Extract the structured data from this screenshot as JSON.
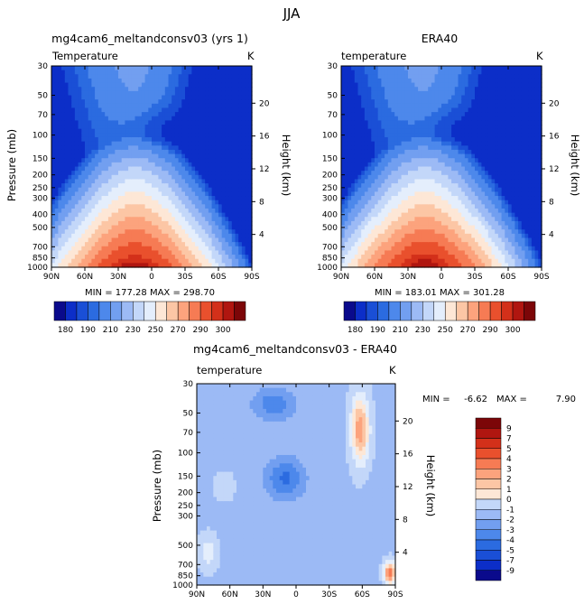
{
  "figure_title": "JJA",
  "chart_data": [
    {
      "type": "heatmap",
      "title": "mg4cam6_meltandconsv03 (yrs 1)",
      "variable_label": "Temperature",
      "units": "K",
      "ylabel": "Pressure (mb)",
      "ylabel_right": "Height (km)",
      "x_ticks": [
        "90N",
        "60N",
        "30N",
        "0",
        "30S",
        "60S",
        "90S"
      ],
      "y_ticks": [
        "30",
        "50",
        "70",
        "100",
        "150",
        "200",
        "250",
        "300",
        "400",
        "500",
        "700",
        "850",
        "1000"
      ],
      "y_ticks_right": [
        "20",
        "16",
        "12",
        "8",
        "4"
      ],
      "stats": "MIN = 177.28  MAX = 298.70",
      "min": 177.28,
      "max": 298.7,
      "colorbar_labels": [
        "180",
        "190",
        "210",
        "230",
        "250",
        "270",
        "290",
        "300"
      ],
      "colors": [
        "#0a0a8c",
        "#0c2ec8",
        "#1a4fd6",
        "#2b6be0",
        "#4d88eb",
        "#729ff0",
        "#9cbaf5",
        "#c3d7f9",
        "#e4eefc",
        "#fde7d6",
        "#fcc6a5",
        "#fca37d",
        "#f67b54",
        "#e9502d",
        "#d3301a",
        "#b01610",
        "#7c0608"
      ],
      "levels": [
        175,
        180,
        185,
        190,
        200,
        210,
        220,
        230,
        240,
        250,
        260,
        270,
        280,
        290,
        295,
        300
      ]
    },
    {
      "type": "heatmap",
      "title": "ERA40",
      "variable_label": "temperature",
      "units": "K",
      "ylabel_right": "Height (km)",
      "x_ticks": [
        "90N",
        "60N",
        "30N",
        "0",
        "30S",
        "60S",
        "90S"
      ],
      "y_ticks": [
        "30",
        "50",
        "70",
        "100",
        "150",
        "200",
        "250",
        "300",
        "400",
        "500",
        "700",
        "850",
        "1000"
      ],
      "y_ticks_right": [
        "20",
        "16",
        "12",
        "8",
        "4"
      ],
      "stats": "MIN = 183.01  MAX = 301.28",
      "min": 183.01,
      "max": 301.28,
      "colorbar_labels": [
        "180",
        "190",
        "210",
        "230",
        "250",
        "270",
        "290",
        "300"
      ]
    },
    {
      "type": "heatmap",
      "title": "mg4cam6_meltandconsv03 - ERA40",
      "variable_label": "temperature",
      "units": "K",
      "ylabel": "Pressure (mb)",
      "ylabel_right": "Height (km)",
      "x_ticks": [
        "90N",
        "60N",
        "30N",
        "0",
        "30S",
        "60S",
        "90S"
      ],
      "y_ticks": [
        "30",
        "50",
        "70",
        "100",
        "150",
        "200",
        "250",
        "300",
        "500",
        "700",
        "850",
        "1000"
      ],
      "y_ticks_right": [
        "20",
        "16",
        "12",
        "8",
        "4"
      ],
      "min_label": "MIN =",
      "min": -6.62,
      "max_label": "MAX =",
      "max": 7.9,
      "colorbar_labels": [
        "9",
        "7",
        "5",
        "4",
        "3",
        "2",
        "1",
        "0",
        "-1",
        "-2",
        "-3",
        "-4",
        "-5",
        "-7",
        "-9"
      ],
      "colors": [
        "#0a0a8c",
        "#0c2ec8",
        "#1a4fd6",
        "#2b6be0",
        "#4d88eb",
        "#729ff0",
        "#9cbaf5",
        "#c3d7f9",
        "#e4eefc",
        "#fde7d6",
        "#fcc6a5",
        "#fca37d",
        "#f67b54",
        "#e9502d",
        "#d3301a",
        "#b01610",
        "#7c0608"
      ],
      "levels": [
        -9,
        -7,
        -5,
        -4,
        -3,
        -2,
        -1,
        0,
        1,
        2,
        3,
        4,
        5,
        7,
        9
      ]
    }
  ]
}
